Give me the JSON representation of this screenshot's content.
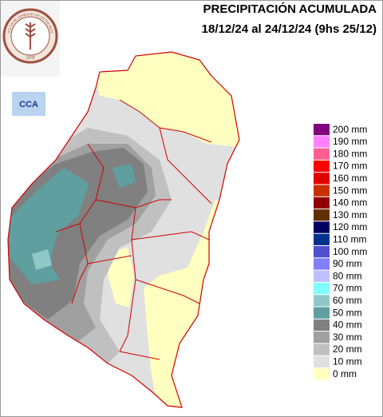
{
  "header": {
    "title_line1": "PRECIPITACIÓN ACUMULADA",
    "title_line2": "18/12/24 al 24/12/24 (9hs 25/12)"
  },
  "logo": {
    "name": "BOLSA DE CEREALES DE ENTRE RIOS",
    "year": "1978",
    "badge": "CCA"
  },
  "legend": {
    "items": [
      {
        "label": "200 mm",
        "color": "#800080"
      },
      {
        "label": "190 mm",
        "color": "#ff80ff"
      },
      {
        "label": "180 mm",
        "color": "#ff6090"
      },
      {
        "label": "170 mm",
        "color": "#ff0000"
      },
      {
        "label": "160 mm",
        "color": "#e00000"
      },
      {
        "label": "150 mm",
        "color": "#c83000"
      },
      {
        "label": "140 mm",
        "color": "#900000"
      },
      {
        "label": "130 mm",
        "color": "#603000"
      },
      {
        "label": "120 mm",
        "color": "#000060"
      },
      {
        "label": "110 mm",
        "color": "#003090"
      },
      {
        "label": "100 mm",
        "color": "#5050d0"
      },
      {
        "label": "90 mm",
        "color": "#8080ff"
      },
      {
        "label": "80 mm",
        "color": "#c0c0ff"
      },
      {
        "label": "70 mm",
        "color": "#80ffff"
      },
      {
        "label": "60 mm",
        "color": "#90c8c8"
      },
      {
        "label": "50 mm",
        "color": "#5f9f9f"
      },
      {
        "label": "40 mm",
        "color": "#808080"
      },
      {
        "label": "30 mm",
        "color": "#a0a0a0"
      },
      {
        "label": "20 mm",
        "color": "#c0c0c0"
      },
      {
        "label": "10 mm",
        "color": "#e0e0e0"
      },
      {
        "label": "0 mm",
        "color": "#ffffc0"
      }
    ]
  }
}
